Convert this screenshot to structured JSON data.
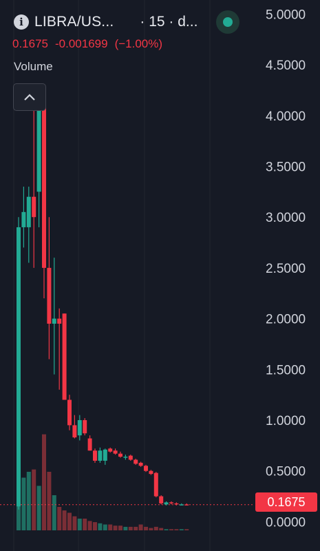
{
  "header": {
    "symbol": "LIBRA/US...",
    "interval": "· 15 · d...",
    "last_price": "0.1675",
    "change": "-0.001699",
    "change_pct": "(−1.00%)",
    "volume_label": "Volume",
    "status_color": "#22ab94"
  },
  "price_badge": "0.1675",
  "colors": {
    "background": "#161a25",
    "up": "#22ab94",
    "down": "#f23645",
    "up_volume": "#1f6f62",
    "down_volume": "#7a2e36",
    "axis_text": "#d1d4dc"
  },
  "chart_data": {
    "type": "candlestick",
    "title": "",
    "y_axis": {
      "position": "right",
      "ticks": [
        "5.0000",
        "4.5000",
        "4.0000",
        "3.5000",
        "3.0000",
        "2.5000",
        "2.0000",
        "1.5000",
        "1.0000",
        "0.5000",
        "0.0000"
      ],
      "ylim": [
        -0.1,
        5.0
      ]
    },
    "last_price_line": 0.1675,
    "candles": [
      {
        "open": 0.15,
        "high": 3.0,
        "low": 0.12,
        "close": 2.9
      },
      {
        "open": 2.9,
        "high": 3.3,
        "low": 2.7,
        "close": 3.05
      },
      {
        "open": 2.9,
        "high": 3.3,
        "low": 2.55,
        "close": 3.2
      },
      {
        "open": 3.2,
        "high": 4.1,
        "low": 2.5,
        "close": 3.0
      },
      {
        "open": 3.25,
        "high": 4.2,
        "low": 2.9,
        "close": 4.1
      },
      {
        "open": 4.15,
        "high": 4.15,
        "low": 2.2,
        "close": 2.5
      },
      {
        "open": 2.5,
        "high": 3.0,
        "low": 1.6,
        "close": 1.95
      },
      {
        "open": 1.95,
        "high": 2.6,
        "low": 1.45,
        "close": 2.0
      },
      {
        "open": 2.0,
        "high": 2.1,
        "low": 1.3,
        "close": 1.95
      },
      {
        "open": 2.05,
        "high": 2.05,
        "low": 1.2,
        "close": 1.2
      },
      {
        "open": 1.2,
        "high": 1.25,
        "low": 0.9,
        "close": 0.95
      },
      {
        "open": 0.95,
        "high": 1.05,
        "low": 0.82,
        "close": 0.83
      },
      {
        "open": 0.85,
        "high": 1.05,
        "low": 0.8,
        "close": 1.0
      },
      {
        "open": 1.0,
        "high": 1.02,
        "low": 0.85,
        "close": 0.87
      },
      {
        "open": 0.82,
        "high": 0.85,
        "low": 0.7,
        "close": 0.7
      },
      {
        "open": 0.7,
        "high": 0.72,
        "low": 0.58,
        "close": 0.6
      },
      {
        "open": 0.6,
        "high": 0.73,
        "low": 0.58,
        "close": 0.7
      },
      {
        "open": 0.6,
        "high": 0.72,
        "low": 0.56,
        "close": 0.71
      },
      {
        "open": 0.72,
        "high": 0.73,
        "low": 0.68,
        "close": 0.69
      },
      {
        "open": 0.7,
        "high": 0.72,
        "low": 0.66,
        "close": 0.67
      },
      {
        "open": 0.67,
        "high": 0.69,
        "low": 0.63,
        "close": 0.64
      },
      {
        "open": 0.63,
        "high": 0.66,
        "low": 0.61,
        "close": 0.64
      },
      {
        "open": 0.65,
        "high": 0.66,
        "low": 0.6,
        "close": 0.61
      },
      {
        "open": 0.61,
        "high": 0.62,
        "low": 0.56,
        "close": 0.57
      },
      {
        "open": 0.58,
        "high": 0.59,
        "low": 0.54,
        "close": 0.55
      },
      {
        "open": 0.55,
        "high": 0.56,
        "low": 0.49,
        "close": 0.5
      },
      {
        "open": 0.5,
        "high": 0.51,
        "low": 0.46,
        "close": 0.47
      },
      {
        "open": 0.48,
        "high": 0.49,
        "low": 0.24,
        "close": 0.25
      },
      {
        "open": 0.25,
        "high": 0.26,
        "low": 0.17,
        "close": 0.18
      },
      {
        "open": 0.17,
        "high": 0.2,
        "low": 0.16,
        "close": 0.19
      },
      {
        "open": 0.19,
        "high": 0.2,
        "low": 0.17,
        "close": 0.18
      },
      {
        "open": 0.18,
        "high": 0.19,
        "low": 0.16,
        "close": 0.17
      },
      {
        "open": 0.17,
        "high": 0.18,
        "low": 0.16,
        "close": 0.17
      },
      {
        "open": 0.17,
        "high": 0.18,
        "low": 0.16,
        "close": 0.1675
      }
    ],
    "volume_relative": [
      1.0,
      0.45,
      0.5,
      0.52,
      0.38,
      0.82,
      0.5,
      0.3,
      0.2,
      0.17,
      0.15,
      0.12,
      0.1,
      0.1,
      0.08,
      0.07,
      0.06,
      0.05,
      0.05,
      0.04,
      0.04,
      0.03,
      0.03,
      0.03,
      0.05,
      0.03,
      0.02,
      0.03,
      0.02,
      0.01,
      0.01,
      0.01,
      0.01,
      0.01
    ]
  }
}
